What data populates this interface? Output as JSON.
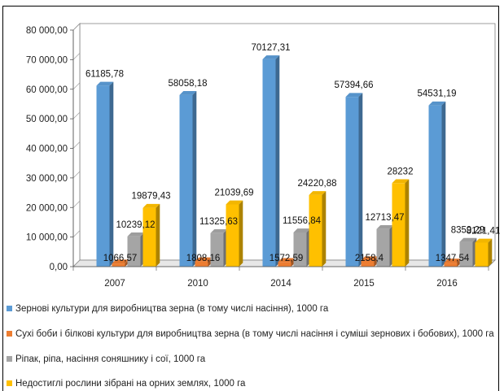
{
  "chart_data": {
    "type": "bar",
    "categories": [
      "2007",
      "2010",
      "2014",
      "2015",
      "2016"
    ],
    "ylim": [
      0,
      80000
    ],
    "yticks": [
      "0,00",
      "10 000,00",
      "20 000,00",
      "30 000,00",
      "40 000,00",
      "50 000,00",
      "60 000,00",
      "70 000,00",
      "80 000,00"
    ],
    "ytick_values": [
      0,
      10000,
      20000,
      30000,
      40000,
      50000,
      60000,
      70000,
      80000
    ],
    "grid": false,
    "style": "3d-clustered-bar",
    "legend_position": "bottom",
    "series": [
      {
        "name": "Зернові культури для виробництва зерна (в тому числі насіння), 1000 га",
        "values": [
          61185.78,
          58058.18,
          70127.31,
          57394.66,
          54531.19
        ],
        "labels": [
          "61185,78",
          "58058,18",
          "70127,31",
          "57394,66",
          "54531,19"
        ],
        "color": "#5b9bd5"
      },
      {
        "name": "Сухі боби і білкові культури для виробництва зерна (в тому числі насіння і суміші зернових і бобових), 1000 га",
        "values": [
          1066.57,
          1808.16,
          1572.59,
          2158.4,
          1347.54
        ],
        "labels": [
          "1066,57",
          "1808,16",
          "1572,59",
          "2158,4",
          "1347,54"
        ],
        "color": "#ed7d31"
      },
      {
        "name": "Ріпак, ріпа, насіння соняшнику і сої, 1000 га",
        "values": [
          10239.12,
          11325.63,
          11556.84,
          12713.47,
          8359.29
        ],
        "labels": [
          "10239,12",
          "11325,63",
          "11556,84",
          "12713,47",
          "8359,29"
        ],
        "color": "#a5a5a5"
      },
      {
        "name": "Недостиглі рослини зібрані на орних землях, 1000 га",
        "values": [
          19879.43,
          21039.69,
          24220.88,
          28232,
          8121.41
        ],
        "labels": [
          "19879,43",
          "21039,69",
          "24220,88",
          "28232",
          "8121,41"
        ],
        "color": "#ffc000"
      }
    ]
  }
}
